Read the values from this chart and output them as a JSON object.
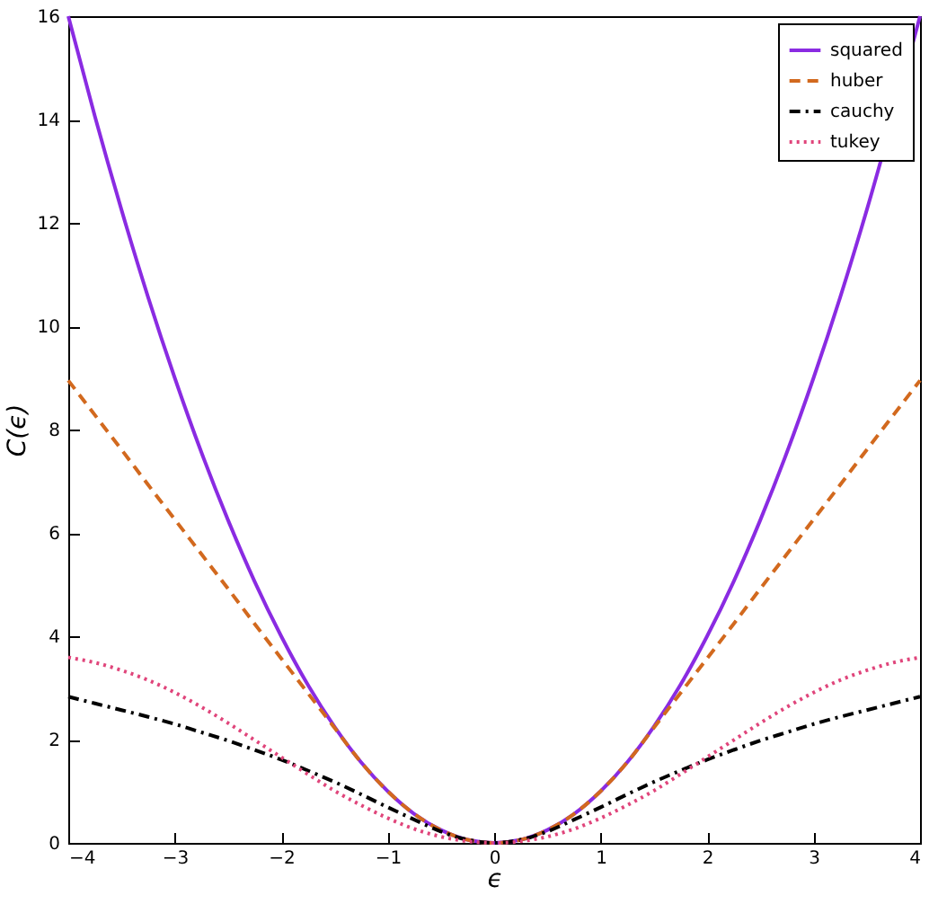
{
  "chart_data": {
    "type": "line",
    "xlabel": "ϵ",
    "ylabel": "C(ϵ)",
    "x": [
      -4,
      -3.75,
      -3.5,
      -3.25,
      -3,
      -2.75,
      -2.5,
      -2.25,
      -2,
      -1.75,
      -1.5,
      -1.25,
      -1,
      -0.75,
      -0.5,
      -0.25,
      0,
      0.25,
      0.5,
      0.75,
      1,
      1.25,
      1.5,
      1.75,
      2,
      2.25,
      2.5,
      2.75,
      3,
      3.25,
      3.5,
      3.75,
      4
    ],
    "series": [
      {
        "name": "squared",
        "color": "#8a2be2",
        "line_style": "solid",
        "x": [
          -4,
          -3.75,
          -3.5,
          -3.25,
          -3,
          -2.75,
          -2.5,
          -2.25,
          -2,
          -1.75,
          -1.5,
          -1.25,
          -1,
          -0.75,
          -0.5,
          -0.25,
          0,
          0.25,
          0.5,
          0.75,
          1,
          1.25,
          1.5,
          1.75,
          2,
          2.25,
          2.5,
          2.75,
          3,
          3.25,
          3.5,
          4
        ],
        "values": [
          16,
          14.06,
          12.25,
          10.56,
          9,
          7.56,
          6.25,
          5.06,
          4,
          3.06,
          2.25,
          1.56,
          1,
          0.56,
          0.25,
          0.06,
          0,
          0.06,
          0.25,
          0.56,
          1,
          1.56,
          2.25,
          3.06,
          4,
          5.06,
          6.25,
          7.56,
          9,
          10.56,
          12.25,
          16
        ]
      },
      {
        "name": "huber",
        "color": "#d2691e",
        "line_style": "dashed",
        "values": [
          8.95,
          8.28,
          7.61,
          6.93,
          6.26,
          5.59,
          4.92,
          4.24,
          3.57,
          2.9,
          2.23,
          1.56,
          1,
          0.56,
          0.25,
          0.06,
          0,
          0.06,
          0.25,
          0.56,
          1,
          1.56,
          2.23,
          2.9,
          3.57,
          4.24,
          4.92,
          5.59,
          6.26,
          6.93,
          7.61,
          8.28,
          8.95
        ]
      },
      {
        "name": "cauchy",
        "color": "#000000",
        "line_style": "dashdot",
        "values": [
          2.83,
          2.7,
          2.57,
          2.44,
          2.3,
          2.14,
          1.98,
          1.8,
          1.61,
          1.4,
          1.18,
          0.94,
          0.69,
          0.45,
          0.22,
          0.06,
          0,
          0.06,
          0.22,
          0.45,
          0.69,
          0.94,
          1.18,
          1.4,
          1.61,
          1.8,
          1.98,
          2.14,
          2.3,
          2.44,
          2.57,
          2.7,
          2.83
        ]
      },
      {
        "name": "tukey",
        "color": "#e0457b",
        "line_style": "dotted",
        "values": [
          3.59,
          3.49,
          3.34,
          3.15,
          2.91,
          2.63,
          2.32,
          1.99,
          1.66,
          1.33,
          1.01,
          0.73,
          0.48,
          0.27,
          0.12,
          0.03,
          0,
          0.03,
          0.12,
          0.27,
          0.48,
          0.73,
          1.01,
          1.33,
          1.66,
          1.99,
          2.32,
          2.63,
          2.91,
          3.15,
          3.34,
          3.49,
          3.59
        ]
      }
    ],
    "xlim": [
      -4,
      4
    ],
    "xticks": [
      -4,
      -3,
      -2,
      -1,
      0,
      1,
      2,
      3,
      4
    ],
    "ylim": [
      0,
      16
    ],
    "yticks": [
      0,
      2,
      4,
      6,
      8,
      10,
      12,
      14,
      16
    ],
    "grid": false,
    "legend": "top right",
    "marker": "none"
  }
}
